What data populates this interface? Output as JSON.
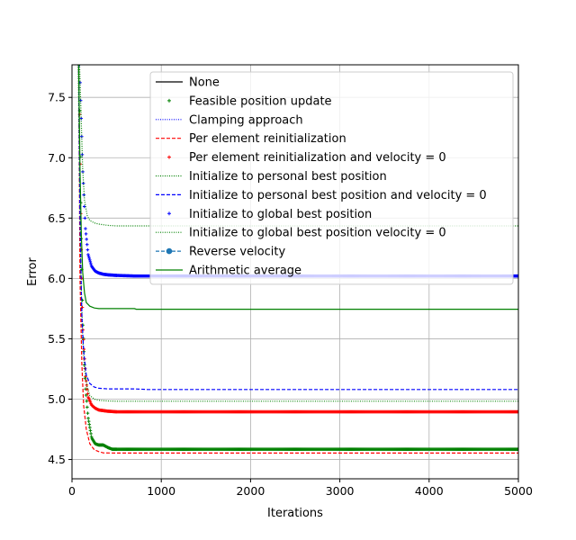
{
  "chart_data": {
    "type": "line",
    "title": "",
    "xlabel": "Iterations",
    "ylabel": "Error",
    "xlim": [
      0,
      5000
    ],
    "ylim": [
      4.34,
      7.77
    ],
    "xticks": [
      0,
      1000,
      2000,
      3000,
      4000,
      5000
    ],
    "yticks": [
      4.5,
      5.0,
      5.5,
      6.0,
      6.5,
      7.0,
      7.5
    ],
    "xtick_labels": [
      "0",
      "1000",
      "2000",
      "3000",
      "4000",
      "5000"
    ],
    "ytick_labels": [
      "4.5",
      "5.0",
      "5.5",
      "6.0",
      "6.5",
      "7.0",
      "7.5"
    ],
    "grid": true,
    "legend_position": "top-right",
    "series": [
      {
        "name": "None",
        "color": "#000000",
        "line": "solid",
        "marker": "none",
        "x": [],
        "y": []
      },
      {
        "name": "Feasible position update",
        "color": "#008000",
        "line": "none",
        "marker": "plus",
        "x": [
          80,
          100,
          120,
          150,
          180,
          220,
          260,
          300,
          350,
          400,
          450,
          600,
          1000,
          2000,
          3000,
          4000,
          5000
        ],
        "y": [
          7.77,
          6.5,
          5.65,
          5.1,
          4.85,
          4.68,
          4.63,
          4.62,
          4.62,
          4.6,
          4.585,
          4.585,
          4.585,
          4.585,
          4.585,
          4.585,
          4.585
        ]
      },
      {
        "name": "Clamping approach",
        "color": "#0000ff",
        "line": "dotted",
        "marker": "none",
        "x": [],
        "y": []
      },
      {
        "name": "Per element reinitialization",
        "color": "#ff0000",
        "line": "dashed",
        "marker": "none",
        "x": [
          75,
          90,
          110,
          130,
          160,
          200,
          250,
          300,
          350,
          500,
          1000,
          2000,
          3000,
          4000,
          5000
        ],
        "y": [
          7.77,
          6.0,
          5.3,
          4.95,
          4.75,
          4.63,
          4.58,
          4.565,
          4.555,
          4.553,
          4.553,
          4.553,
          4.553,
          4.553,
          4.553
        ]
      },
      {
        "name": "Per element reinitialization and velocity = 0",
        "color": "#ff0000",
        "line": "none",
        "marker": "plus",
        "x": [
          80,
          100,
          120,
          150,
          180,
          220,
          260,
          300,
          350,
          400,
          500,
          1000,
          2000,
          3000,
          4000,
          5000
        ],
        "y": [
          7.77,
          6.4,
          5.6,
          5.2,
          5.02,
          4.95,
          4.925,
          4.91,
          4.905,
          4.9,
          4.895,
          4.895,
          4.895,
          4.895,
          4.895,
          4.895
        ]
      },
      {
        "name": "Initialize to personal best position",
        "color": "#008000",
        "line": "dotted",
        "marker": "none",
        "x": [
          70,
          85,
          100,
          120,
          140,
          170,
          200,
          250,
          300,
          400,
          500,
          1000,
          2000,
          3000,
          4000,
          5000
        ],
        "y": [
          7.77,
          6.8,
          6.0,
          5.5,
          5.25,
          5.1,
          5.03,
          5.0,
          4.99,
          4.985,
          4.983,
          4.983,
          4.983,
          4.983,
          4.983,
          4.983
        ]
      },
      {
        "name": "Initialize to personal best position and velocity = 0",
        "color": "#0000ff",
        "line": "dashed",
        "marker": "none",
        "x": [
          75,
          90,
          110,
          130,
          160,
          200,
          250,
          300,
          400,
          500,
          700,
          850,
          1000,
          2000,
          3000,
          4000,
          5000
        ],
        "y": [
          7.77,
          6.5,
          5.7,
          5.4,
          5.2,
          5.13,
          5.1,
          5.09,
          5.085,
          5.085,
          5.085,
          5.08,
          5.08,
          5.08,
          5.08,
          5.08,
          5.08
        ]
      },
      {
        "name": "Initialize to global best position",
        "color": "#0000ff",
        "line": "none",
        "marker": "plus",
        "x": [
          85,
          100,
          120,
          150,
          180,
          220,
          260,
          300,
          350,
          400,
          500,
          700,
          1000,
          2000,
          3000,
          4000,
          5000
        ],
        "y": [
          7.77,
          7.4,
          6.9,
          6.42,
          6.2,
          6.1,
          6.06,
          6.045,
          6.035,
          6.03,
          6.025,
          6.02,
          6.02,
          6.02,
          6.02,
          6.02,
          6.02
        ]
      },
      {
        "name": "Initialize to global best position velocity = 0",
        "color": "#008000",
        "line": "dotted",
        "marker": "none",
        "x": [
          85,
          100,
          120,
          140,
          170,
          200,
          250,
          300,
          400,
          500,
          700,
          1000,
          2000,
          3000,
          4000,
          5000
        ],
        "y": [
          7.77,
          7.4,
          6.9,
          6.65,
          6.52,
          6.48,
          6.46,
          6.45,
          6.44,
          6.435,
          6.435,
          6.435,
          6.435,
          6.435,
          6.435,
          6.435
        ]
      },
      {
        "name": "Reverse velocity",
        "color": "#1f77b4",
        "line": "dashed",
        "marker": "circle",
        "x": [],
        "y": []
      },
      {
        "name": "Arithmetic average",
        "color": "#008000",
        "line": "solid",
        "marker": "none",
        "x": [
          75,
          90,
          105,
          120,
          140,
          160,
          200,
          250,
          300,
          400,
          500,
          700,
          720,
          1000,
          2000,
          3000,
          4000,
          5000
        ],
        "y": [
          7.77,
          6.9,
          6.35,
          6.05,
          5.88,
          5.8,
          5.77,
          5.755,
          5.75,
          5.75,
          5.75,
          5.75,
          5.745,
          5.745,
          5.745,
          5.745,
          5.745,
          5.745
        ]
      }
    ]
  }
}
